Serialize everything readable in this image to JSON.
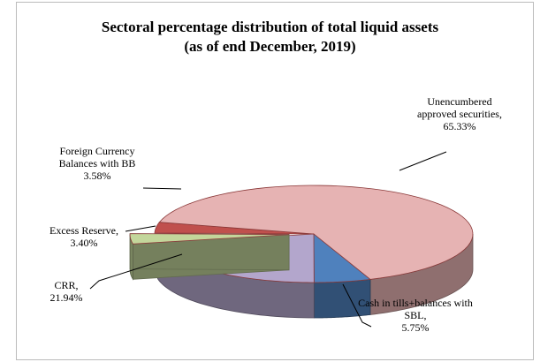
{
  "chart_data": {
    "type": "pie",
    "title": "Sectoral percentage distribution of total liquid assets",
    "subtitle": "(as of end December, 2019)",
    "categories": [
      "Unencumbered approved securities,",
      "Cash in tills+balances with SBL,",
      "CRR,",
      "Excess Reserve,",
      "Foreign Currency Balances with BB"
    ],
    "values": [
      65.33,
      5.75,
      21.94,
      3.4,
      3.58
    ],
    "value_labels": [
      "65.33%",
      "5.75%",
      "21.94%",
      "3.40%",
      "3.58%"
    ],
    "colors": [
      "#e6b3b3",
      "#4f81bd",
      "#b3a6cc",
      "#c3d69b",
      "#c0504d"
    ]
  }
}
